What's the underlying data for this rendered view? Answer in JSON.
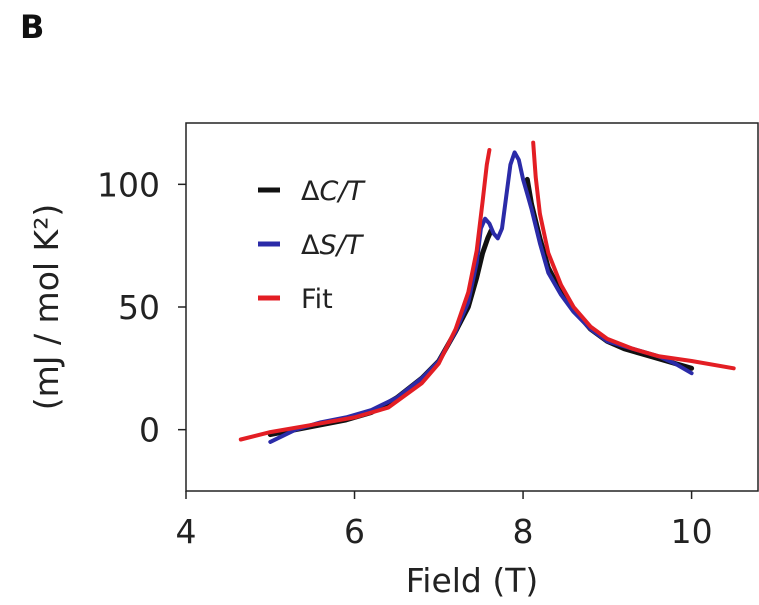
{
  "panel_label": "B",
  "chart_data": {
    "type": "line",
    "title": "",
    "xlabel": "Field (T)",
    "ylabel": "(mJ / mol K²)",
    "xlim": [
      4,
      10.8
    ],
    "ylim": [
      -25,
      125
    ],
    "xticks": [
      4,
      6,
      8,
      10
    ],
    "yticks": [
      0,
      50,
      100
    ],
    "grid": false,
    "legend_position": "top-left",
    "series": [
      {
        "name": "ΔC/T",
        "legend_math": {
          "prefix": "Δ",
          "italic": "C/T"
        },
        "color": "#111111",
        "x": [
          5.0,
          5.3,
          5.6,
          5.9,
          6.2,
          6.5,
          6.8,
          7.0,
          7.2,
          7.35,
          7.45,
          7.52,
          7.58,
          7.62
        ],
        "y": [
          -2,
          0,
          2,
          4,
          7,
          13,
          21,
          28,
          40,
          50,
          62,
          72,
          78,
          81
        ],
        "x2": [
          8.05,
          8.1,
          8.2,
          8.3,
          8.45,
          8.6,
          8.8,
          9.0,
          9.2,
          9.4,
          9.6,
          9.8,
          10.0
        ],
        "y2": [
          102,
          92,
          78,
          66,
          56,
          49,
          41,
          36,
          33,
          31,
          29,
          27,
          25
        ]
      },
      {
        "name": "ΔS/T",
        "legend_math": {
          "prefix": "Δ",
          "italic": "S/T"
        },
        "color": "#2b2ba8",
        "x": [
          5.0,
          5.3,
          5.6,
          5.9,
          6.2,
          6.5,
          6.8,
          7.0,
          7.2,
          7.35,
          7.45,
          7.5,
          7.55,
          7.6,
          7.65,
          7.7,
          7.75,
          7.8,
          7.85,
          7.9,
          7.95,
          8.0,
          8.05,
          8.1,
          8.2,
          8.3,
          8.45,
          8.6,
          8.8,
          9.0,
          9.2,
          9.4,
          9.6,
          9.8,
          10.0
        ],
        "y": [
          -5,
          0,
          3,
          5,
          8,
          13,
          21,
          28,
          40,
          52,
          68,
          82,
          86,
          84,
          80,
          78,
          82,
          95,
          108,
          113,
          110,
          102,
          96,
          90,
          76,
          64,
          55,
          48,
          41,
          36,
          34,
          32,
          30,
          27,
          23
        ]
      },
      {
        "name": "Fit",
        "color": "#e31e24",
        "x": [
          4.65,
          5.0,
          5.5,
          6.0,
          6.4,
          6.8,
          7.0,
          7.2,
          7.35,
          7.45,
          7.52,
          7.57,
          7.6
        ],
        "y": [
          -4,
          -1,
          2,
          5,
          9,
          19,
          27,
          41,
          56,
          73,
          93,
          108,
          114
        ],
        "x2": [
          8.12,
          8.15,
          8.2,
          8.3,
          8.45,
          8.6,
          8.8,
          9.0,
          9.3,
          9.6,
          10.0,
          10.5
        ],
        "y2": [
          117,
          103,
          88,
          72,
          59,
          50,
          42,
          37,
          33,
          30,
          28,
          25
        ]
      }
    ]
  }
}
